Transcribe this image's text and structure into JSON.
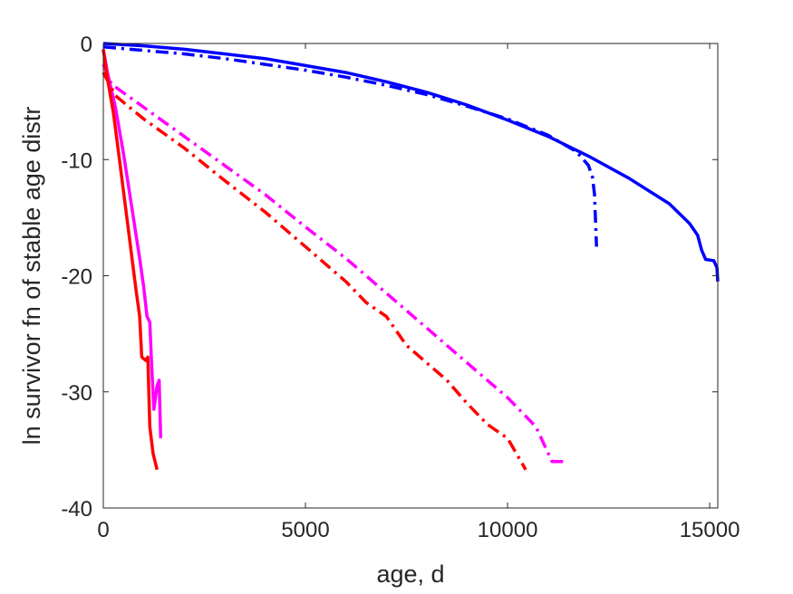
{
  "chart_data": {
    "type": "line",
    "xlabel": "age, d",
    "ylabel": "ln survivor fn of stable age distr",
    "xlim": [
      0,
      15200
    ],
    "ylim": [
      -40,
      0
    ],
    "xticks": [
      0,
      5000,
      10000,
      15000
    ],
    "yticks": [
      0,
      -10,
      -20,
      -30,
      -40
    ],
    "xtick_labels": [
      "0",
      "5000",
      "10000",
      "15000"
    ],
    "ytick_labels": [
      "0",
      "-10",
      "-20",
      "-30",
      "-40"
    ],
    "grid": false,
    "box": true,
    "series": [
      {
        "color": "#0000ff",
        "style": "solid",
        "points": [
          [
            0,
            0
          ],
          [
            1000,
            -0.2
          ],
          [
            2000,
            -0.5
          ],
          [
            3000,
            -0.9
          ],
          [
            4000,
            -1.3
          ],
          [
            5000,
            -1.9
          ],
          [
            6000,
            -2.5
          ],
          [
            7000,
            -3.3
          ],
          [
            8000,
            -4.2
          ],
          [
            9000,
            -5.3
          ],
          [
            10000,
            -6.6
          ],
          [
            11000,
            -8.0
          ],
          [
            12000,
            -9.7
          ],
          [
            13000,
            -11.6
          ],
          [
            14000,
            -13.8
          ],
          [
            14500,
            -15.5
          ],
          [
            14700,
            -16.5
          ],
          [
            14800,
            -17.8
          ],
          [
            14900,
            -18.6
          ],
          [
            15100,
            -18.7
          ],
          [
            15180,
            -19.3
          ],
          [
            15200,
            -20.5
          ]
        ]
      },
      {
        "color": "#0000ff",
        "style": "dashdot",
        "points": [
          [
            0,
            -0.3
          ],
          [
            1000,
            -0.6
          ],
          [
            2000,
            -0.9
          ],
          [
            3000,
            -1.3
          ],
          [
            4000,
            -1.8
          ],
          [
            5000,
            -2.3
          ],
          [
            6000,
            -2.9
          ],
          [
            7000,
            -3.6
          ],
          [
            8000,
            -4.4
          ],
          [
            9000,
            -5.4
          ],
          [
            10000,
            -6.5
          ],
          [
            11000,
            -7.9
          ],
          [
            11700,
            -9.3
          ],
          [
            12000,
            -10.5
          ],
          [
            12100,
            -11.5
          ],
          [
            12150,
            -13.0
          ],
          [
            12200,
            -17.5
          ]
        ]
      },
      {
        "color": "#ff00ff",
        "style": "solid",
        "points": [
          [
            0,
            -0.5
          ],
          [
            100,
            -2.5
          ],
          [
            300,
            -5.5
          ],
          [
            500,
            -9.5
          ],
          [
            700,
            -14.0
          ],
          [
            900,
            -18.5
          ],
          [
            1000,
            -21.0
          ],
          [
            1080,
            -23.5
          ],
          [
            1150,
            -24.0
          ],
          [
            1200,
            -28.0
          ],
          [
            1250,
            -31.5
          ],
          [
            1330,
            -29.5
          ],
          [
            1380,
            -29.0
          ],
          [
            1420,
            -34.0
          ]
        ]
      },
      {
        "color": "#ff00ff",
        "style": "dashdot",
        "points": [
          [
            0,
            -1.8
          ],
          [
            200,
            -3.5
          ],
          [
            1000,
            -5.5
          ],
          [
            2000,
            -8.0
          ],
          [
            3000,
            -10.5
          ],
          [
            4000,
            -13.0
          ],
          [
            5000,
            -15.8
          ],
          [
            6000,
            -18.5
          ],
          [
            7000,
            -21.5
          ],
          [
            8000,
            -24.5
          ],
          [
            9000,
            -27.5
          ],
          [
            10000,
            -30.5
          ],
          [
            10700,
            -33.0
          ],
          [
            11100,
            -36.0
          ],
          [
            11500,
            -36.0
          ]
        ]
      },
      {
        "color": "#ff0000",
        "style": "solid",
        "points": [
          [
            0,
            -0.5
          ],
          [
            100,
            -3.0
          ],
          [
            250,
            -6.0
          ],
          [
            400,
            -10.0
          ],
          [
            600,
            -15.5
          ],
          [
            800,
            -21.0
          ],
          [
            900,
            -23.5
          ],
          [
            950,
            -27.0
          ],
          [
            1050,
            -27.3
          ],
          [
            1100,
            -27.0
          ],
          [
            1150,
            -33.0
          ],
          [
            1230,
            -35.3
          ],
          [
            1330,
            -36.7
          ]
        ]
      },
      {
        "color": "#ff0000",
        "style": "dashdot",
        "points": [
          [
            0,
            -2.5
          ],
          [
            300,
            -4.5
          ],
          [
            1000,
            -6.5
          ],
          [
            2000,
            -9.0
          ],
          [
            3000,
            -11.8
          ],
          [
            4000,
            -14.5
          ],
          [
            5000,
            -17.5
          ],
          [
            6000,
            -20.5
          ],
          [
            6500,
            -22.3
          ],
          [
            7000,
            -23.5
          ],
          [
            7500,
            -26.0
          ],
          [
            8000,
            -27.5
          ],
          [
            8500,
            -29.0
          ],
          [
            9000,
            -31.0
          ],
          [
            9500,
            -32.8
          ],
          [
            10000,
            -34.0
          ],
          [
            10450,
            -36.7
          ]
        ]
      }
    ]
  }
}
